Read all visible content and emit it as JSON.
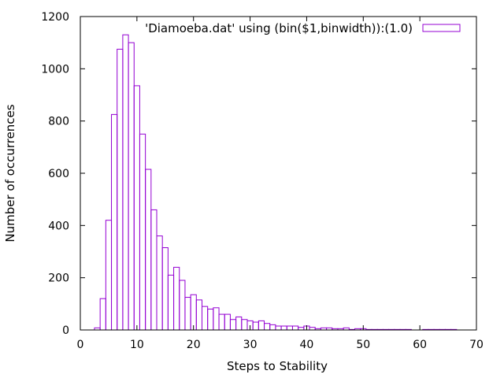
{
  "chart_data": {
    "type": "bar",
    "xlabel": "Steps to Stability",
    "ylabel": "Number of occurrences",
    "xlim": [
      0,
      70
    ],
    "ylim": [
      0,
      1200
    ],
    "x_ticks": [
      "0",
      "10",
      "20",
      "30",
      "40",
      "50",
      "60",
      "70"
    ],
    "y_ticks": [
      "0",
      "200",
      "400",
      "600",
      "800",
      "1000",
      "1200"
    ],
    "grid": false,
    "legend_position": "top-right",
    "bar_color": "#9400d3",
    "series": [
      {
        "name": "'Diamoeba.dat' using (bin($1,binwidth)):(1.0)",
        "bin_width": 1,
        "x": [
          3,
          4,
          5,
          6,
          7,
          8,
          9,
          10,
          11,
          12,
          13,
          14,
          15,
          16,
          17,
          18,
          19,
          20,
          21,
          22,
          23,
          24,
          25,
          26,
          27,
          28,
          29,
          30,
          31,
          32,
          33,
          34,
          35,
          36,
          37,
          38,
          39,
          40,
          41,
          42,
          43,
          44,
          45,
          46,
          47,
          48,
          49,
          50,
          51,
          52,
          53,
          54,
          55,
          56,
          57,
          58,
          59,
          60,
          61,
          62,
          63,
          64,
          65,
          66
        ],
        "values": [
          8,
          120,
          420,
          825,
          1075,
          1130,
          1100,
          935,
          750,
          615,
          460,
          360,
          315,
          210,
          240,
          190,
          125,
          135,
          115,
          90,
          80,
          85,
          60,
          60,
          40,
          50,
          40,
          35,
          30,
          35,
          25,
          20,
          15,
          15,
          15,
          15,
          10,
          15,
          10,
          5,
          8,
          8,
          5,
          5,
          8,
          2,
          5,
          5,
          2,
          2,
          2,
          2,
          2,
          2,
          2,
          2,
          0,
          0,
          2,
          2,
          2,
          2,
          2,
          2
        ]
      }
    ]
  }
}
